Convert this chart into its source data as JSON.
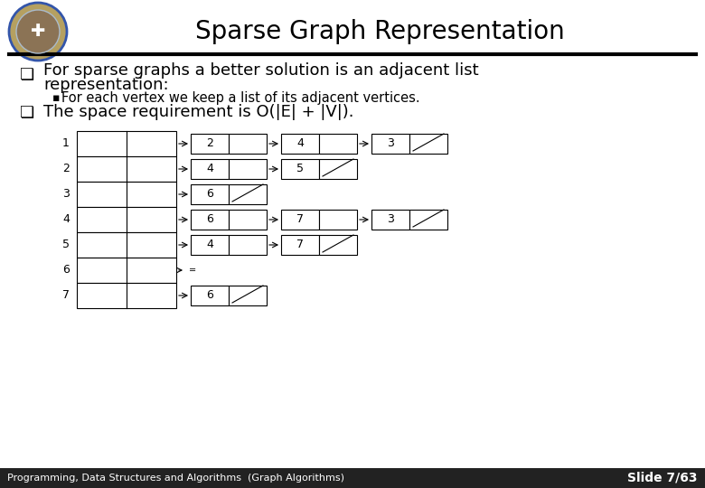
{
  "title": "Sparse Graph Representation",
  "bg_color": "#ffffff",
  "bullet1_line1": "For sparse graphs a better solution is an adjacent list",
  "bullet1_line2": "representation:",
  "bullet1_sub": "For each vertex we keep a list of its adjacent vertices.",
  "bullet2": "The space requirement is O(|E| + |V|).",
  "footer_left": "Programming, Data Structures and Algorithms  (Graph Algorithms)",
  "footer_right": "Slide 7/63",
  "adjacency_list": {
    "1": [
      2,
      4,
      3
    ],
    "2": [
      4,
      5
    ],
    "3": [
      6
    ],
    "4": [
      6,
      7,
      3
    ],
    "5": [
      4,
      7
    ],
    "6": [],
    "7": [
      6
    ]
  },
  "vertices": [
    "1",
    "2",
    "3",
    "4",
    "5",
    "6",
    "7"
  ]
}
